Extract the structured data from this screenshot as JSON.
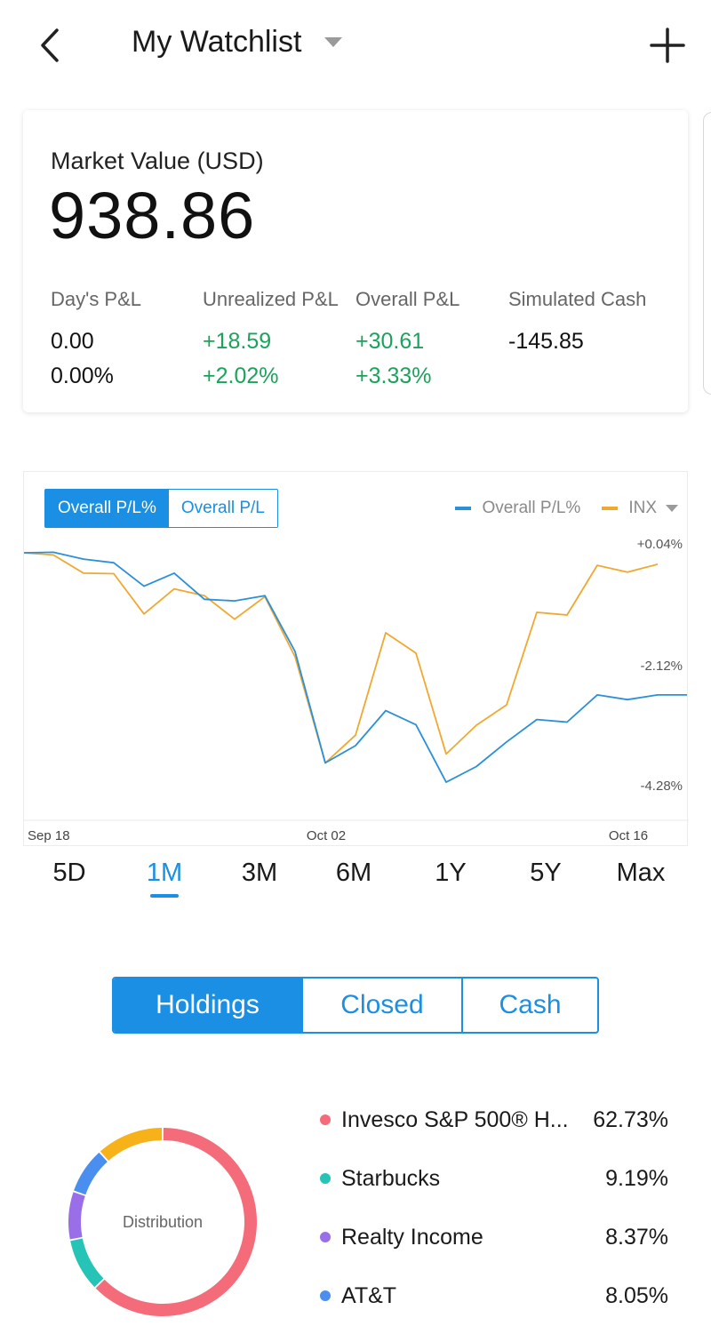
{
  "header": {
    "title": "My Watchlist",
    "back_icon": "chevron-left-icon",
    "dropdown_icon": "caret-down-icon",
    "add_icon": "plus-icon"
  },
  "market": {
    "label": "Market Value  (USD)",
    "value": "938.86",
    "columns": [
      {
        "head": "Day's P&L",
        "v1": "0.00",
        "v2": "0.00%",
        "color": "black"
      },
      {
        "head": "Unrealized P&L",
        "v1": "+18.59",
        "v2": "+2.02%",
        "color": "green"
      },
      {
        "head": "Overall P&L",
        "v1": "+30.61",
        "v2": "+3.33%",
        "color": "green"
      },
      {
        "head": "Simulated Cash",
        "v1": "-145.85",
        "v2": "",
        "color": "black"
      }
    ]
  },
  "chart": {
    "toggle": [
      "Overall P/L%",
      "Overall P/L"
    ],
    "legend_primary": "Overall P/L%",
    "legend_secondary": "INX",
    "right_labels": [
      "+0.04%",
      "-2.12%",
      "-4.28%"
    ]
  },
  "chart_data": {
    "type": "line",
    "x_labels": [
      "Sep 18",
      "Oct 02",
      "Oct 16"
    ],
    "y_labels": [
      "+0.04%",
      "-2.12%",
      "-4.28%"
    ],
    "ylim": [
      -4.28,
      0.04
    ],
    "series": [
      {
        "name": "Overall P/L%",
        "color": "#2a90d8",
        "values": [
          0.04,
          0.05,
          -0.08,
          -0.15,
          -0.6,
          -0.35,
          -0.85,
          -0.88,
          -0.78,
          -1.85,
          -3.98,
          -3.65,
          -2.98,
          -3.25,
          -4.35,
          -4.05,
          -3.58,
          -3.15,
          -3.2,
          -2.68,
          -2.77,
          -2.68,
          -2.68
        ]
      },
      {
        "name": "INX",
        "color": "#f0a830",
        "values": [
          0.04,
          0.0,
          -0.35,
          -0.36,
          -1.13,
          -0.65,
          -0.78,
          -1.23,
          -0.8,
          -1.95,
          -3.98,
          -3.45,
          -1.49,
          -1.88,
          -3.81,
          -3.26,
          -2.87,
          -1.1,
          -1.15,
          -0.2,
          -0.33,
          -0.18
        ]
      }
    ]
  },
  "ranges": [
    "5D",
    "1M",
    "3M",
    "6M",
    "1Y",
    "5Y",
    "Max"
  ],
  "active_range": "1M",
  "segments": [
    "Holdings",
    "Closed",
    "Cash"
  ],
  "donut_label": "Distribution",
  "distribution": [
    {
      "name": "Invesco S&P 500® H...",
      "pct": "62.73%",
      "value": 62.73,
      "color": "#f46b7a"
    },
    {
      "name": "Starbucks",
      "pct": "9.19%",
      "value": 9.19,
      "color": "#25c4b6"
    },
    {
      "name": "Realty Income",
      "pct": "8.37%",
      "value": 8.37,
      "color": "#9a6ee8"
    },
    {
      "name": "AT&T",
      "pct": "8.05%",
      "value": 8.05,
      "color": "#4a8ff0"
    },
    {
      "name": "",
      "pct": "",
      "value": 11.66,
      "color": "#f7b21a"
    }
  ]
}
